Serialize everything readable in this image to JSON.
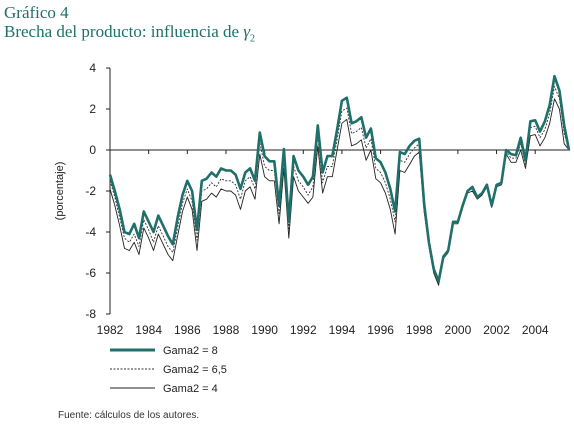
{
  "title_line1": "Gráfico 4",
  "title_line2": "Brecha del producto: influencia de",
  "title_gamma": "γ",
  "title_sub": "2",
  "source": "Fuente: cálculos de los autores.",
  "chart_data": {
    "type": "line",
    "title": "Brecha del producto: influencia de γ2",
    "xlabel": "",
    "ylabel": "(porcentaje)",
    "xlim": [
      1982,
      2005.8
    ],
    "ylim": [
      -8,
      4
    ],
    "xticks": [
      1982,
      1984,
      1986,
      1988,
      1990,
      1992,
      1994,
      1996,
      1998,
      2000,
      2002,
      2004
    ],
    "yticks": [
      -8,
      -6,
      -4,
      -2,
      0,
      2,
      4
    ],
    "grid": false,
    "legend_position": "bottom-left",
    "colors": {
      "gama8": "#1f6f6a",
      "gama65": "#333333",
      "gama4": "#222222"
    },
    "x": [
      1982.0,
      1982.25,
      1982.5,
      1982.75,
      1983.0,
      1983.25,
      1983.5,
      1983.75,
      1984.0,
      1984.25,
      1984.5,
      1984.75,
      1985.0,
      1985.25,
      1985.5,
      1985.75,
      1986.0,
      1986.25,
      1986.5,
      1986.75,
      1987.0,
      1987.25,
      1987.5,
      1987.75,
      1988.0,
      1988.25,
      1988.5,
      1988.75,
      1989.0,
      1989.25,
      1989.5,
      1989.75,
      1990.0,
      1990.25,
      1990.5,
      1990.75,
      1991.0,
      1991.25,
      1991.5,
      1991.75,
      1992.0,
      1992.25,
      1992.5,
      1992.75,
      1993.0,
      1993.25,
      1993.5,
      1993.75,
      1994.0,
      1994.25,
      1994.5,
      1994.75,
      1995.0,
      1995.25,
      1995.5,
      1995.75,
      1996.0,
      1996.25,
      1996.5,
      1996.75,
      1997.0,
      1997.25,
      1997.5,
      1997.75,
      1998.0,
      1998.25,
      1998.5,
      1998.75,
      1999.0,
      1999.25,
      1999.5,
      1999.75,
      2000.0,
      2000.25,
      2000.5,
      2000.75,
      2001.0,
      2001.25,
      2001.5,
      2001.75,
      2002.0,
      2002.25,
      2002.5,
      2002.75,
      2003.0,
      2003.25,
      2003.5,
      2003.75,
      2004.0,
      2004.25,
      2004.5,
      2004.75,
      2005.0,
      2005.25,
      2005.5,
      2005.75
    ],
    "series": [
      {
        "name": "Gama2 = 8",
        "values": [
          -1.2,
          -2.0,
          -2.9,
          -4.0,
          -4.1,
          -3.6,
          -4.3,
          -3.0,
          -3.5,
          -4.0,
          -3.2,
          -3.7,
          -4.2,
          -4.6,
          -3.3,
          -2.2,
          -1.5,
          -2.0,
          -3.9,
          -1.5,
          -1.4,
          -1.1,
          -1.3,
          -0.9,
          -1.0,
          -1.0,
          -1.2,
          -1.9,
          -1.1,
          -0.9,
          -1.5,
          0.85,
          -0.3,
          -0.55,
          -0.55,
          -2.7,
          0.05,
          -3.5,
          -0.3,
          -1.0,
          -1.3,
          -1.7,
          -1.3,
          1.2,
          -1.1,
          -0.3,
          -0.3,
          1.0,
          2.4,
          2.55,
          1.3,
          1.4,
          1.6,
          0.6,
          1.05,
          -0.4,
          -0.6,
          -1.1,
          -1.9,
          -3.0,
          -0.1,
          -0.2,
          0.2,
          0.45,
          0.55,
          -2.6,
          -4.5,
          -5.8,
          -6.4,
          -5.2,
          -4.9,
          -3.5,
          -3.5,
          -2.7,
          -2.0,
          -1.8,
          -2.3,
          -2.1,
          -1.7,
          -2.7,
          -1.7,
          -1.6,
          0.0,
          -0.2,
          -0.25,
          0.6,
          -0.5,
          1.4,
          1.45,
          0.9,
          1.4,
          2.2,
          3.6,
          2.9,
          1.2,
          0.0
        ]
      },
      {
        "name": "Gama2 = 6,5",
        "values": [
          -1.5,
          -2.3,
          -3.3,
          -4.3,
          -4.5,
          -4.1,
          -4.7,
          -3.4,
          -3.9,
          -4.5,
          -3.7,
          -4.2,
          -4.7,
          -5.0,
          -3.8,
          -2.6,
          -1.9,
          -2.5,
          -4.4,
          -2.0,
          -1.9,
          -1.6,
          -1.8,
          -1.4,
          -1.5,
          -1.5,
          -1.7,
          -2.4,
          -1.5,
          -1.3,
          -1.9,
          0.35,
          -0.8,
          -1.0,
          -1.0,
          -3.1,
          -0.4,
          -3.9,
          -0.8,
          -1.5,
          -1.8,
          -2.2,
          -1.8,
          0.7,
          -1.6,
          -0.8,
          -0.8,
          0.5,
          1.9,
          2.05,
          0.8,
          0.9,
          1.1,
          0.1,
          0.55,
          -0.9,
          -1.1,
          -1.6,
          -2.4,
          -3.5,
          -0.5,
          -0.6,
          -0.2,
          0.1,
          0.3,
          -2.8,
          -4.6,
          -5.9,
          -6.5,
          -5.2,
          -4.9,
          -3.5,
          -3.5,
          -2.7,
          -2.0,
          -1.9,
          -2.3,
          -2.1,
          -1.7,
          -2.7,
          -1.7,
          -1.6,
          -0.1,
          -0.4,
          -0.4,
          0.3,
          -0.7,
          1.1,
          1.15,
          0.6,
          1.0,
          1.8,
          3.1,
          2.5,
          0.8,
          0.0
        ]
      },
      {
        "name": "Gama2 = 4",
        "values": [
          -1.9,
          -2.7,
          -3.7,
          -4.8,
          -4.9,
          -4.5,
          -5.1,
          -3.8,
          -4.3,
          -4.9,
          -4.1,
          -4.6,
          -5.1,
          -5.4,
          -4.2,
          -3.0,
          -2.3,
          -2.9,
          -4.9,
          -2.5,
          -2.4,
          -2.1,
          -2.3,
          -1.9,
          -2.0,
          -2.0,
          -2.2,
          -2.9,
          -2.0,
          -1.8,
          -2.4,
          -0.2,
          -1.3,
          -1.5,
          -1.5,
          -3.6,
          -0.9,
          -4.3,
          -1.3,
          -2.0,
          -2.3,
          -2.6,
          -2.3,
          0.2,
          -2.1,
          -1.3,
          -1.3,
          0.0,
          1.3,
          1.5,
          0.2,
          0.3,
          0.5,
          -0.5,
          0.0,
          -1.4,
          -1.6,
          -2.1,
          -2.9,
          -4.1,
          -1.0,
          -1.1,
          -0.7,
          -0.3,
          -0.1,
          -3.0,
          -4.7,
          -6.0,
          -6.6,
          -5.3,
          -5.0,
          -3.6,
          -3.6,
          -2.8,
          -2.1,
          -2.0,
          -2.4,
          -2.2,
          -1.8,
          -2.8,
          -1.8,
          -1.7,
          -0.2,
          -0.6,
          -0.6,
          0.0,
          -0.9,
          0.7,
          0.75,
          0.2,
          0.6,
          1.3,
          2.5,
          2.0,
          0.3,
          0.0
        ]
      }
    ]
  }
}
